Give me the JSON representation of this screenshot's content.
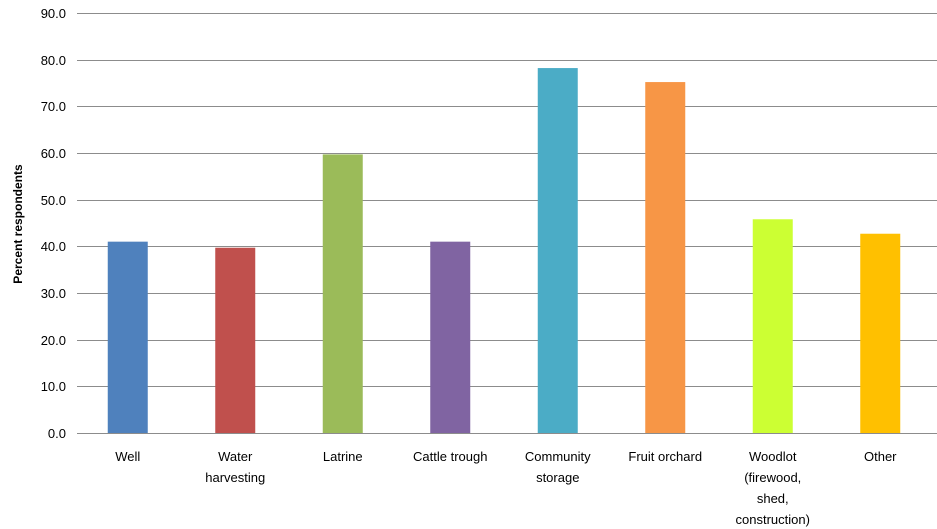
{
  "chart_data": {
    "type": "bar",
    "title": "",
    "xlabel": "",
    "ylabel": "Percent respondents",
    "ylim": [
      0,
      90
    ],
    "yticks": [
      "0.0",
      "10.0",
      "20.0",
      "30.0",
      "40.0",
      "50.0",
      "60.0",
      "70.0",
      "80.0",
      "90.0"
    ],
    "grid": true,
    "categories": [
      [
        "Well"
      ],
      [
        "Water",
        "harvesting"
      ],
      [
        "Latrine"
      ],
      [
        "Cattle trough"
      ],
      [
        "Community",
        "storage"
      ],
      [
        "Fruit orchard"
      ],
      [
        "Woodlot",
        "(firewood,",
        "shed,",
        "construction)"
      ],
      [
        "Other"
      ]
    ],
    "values": [
      41.0,
      39.7,
      59.7,
      41.0,
      78.2,
      75.2,
      45.8,
      42.7
    ],
    "colors": [
      "#4F81BD",
      "#C0504D",
      "#9BBB59",
      "#8064A2",
      "#4BACC6",
      "#F79646",
      "#CCFF33",
      "#FFC000"
    ]
  }
}
